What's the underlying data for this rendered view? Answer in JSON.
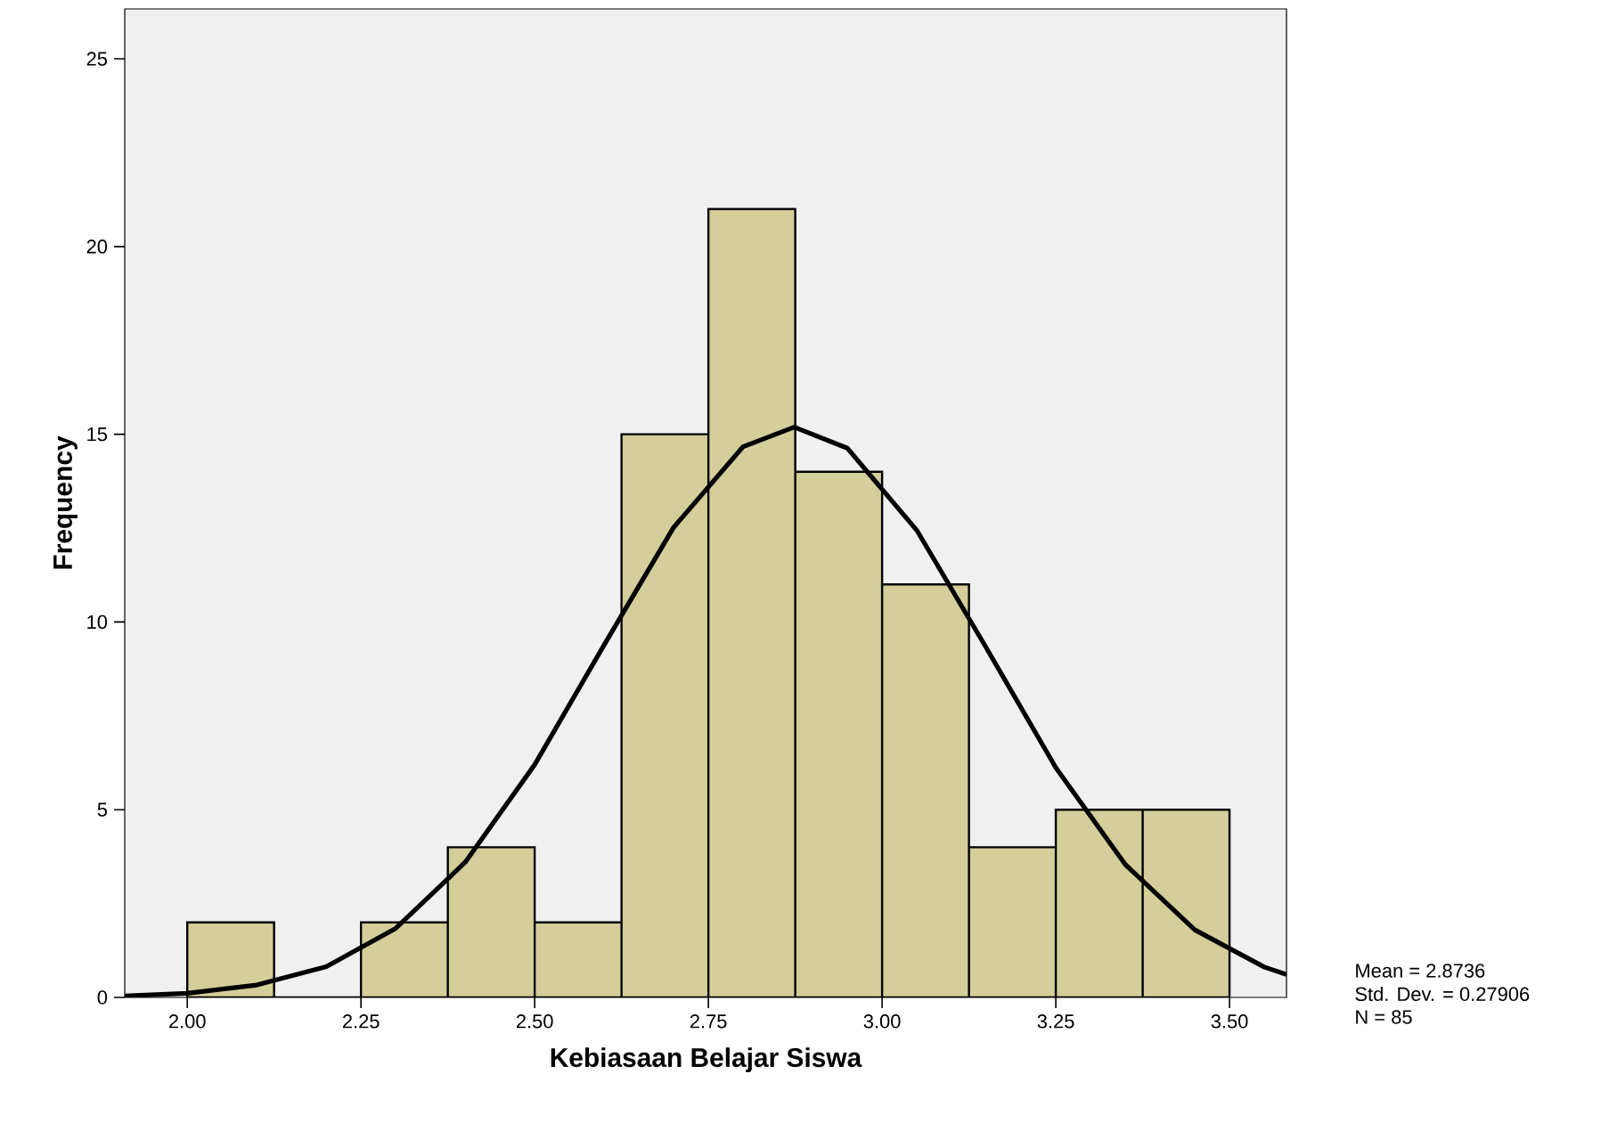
{
  "chart_data": {
    "type": "histogram",
    "xlabel": "Kebiasaan Belajar Siswa",
    "ylabel": "Frequency",
    "series": [
      {
        "color": "#d3ce9a",
        "bins": [
          2.0,
          2.125,
          2.25,
          2.375,
          2.5,
          2.625,
          2.75,
          2.875,
          3.0,
          3.125,
          3.25,
          3.375,
          3.5
        ],
        "values": [
          2,
          0,
          2,
          4,
          2,
          15,
          21,
          14,
          11,
          4,
          5,
          5
        ]
      },
      {
        "type": "line",
        "color": "#000000",
        "x": [
          1.91,
          2.0,
          2.1,
          2.2,
          2.3,
          2.4,
          2.5,
          2.6,
          2.7,
          2.8,
          2.8736,
          2.95,
          3.05,
          3.15,
          3.25,
          3.35,
          3.45,
          3.55,
          3.582
        ],
        "values": [
          0.04,
          0.11,
          0.33,
          0.82,
          1.84,
          3.6,
          6.2,
          9.39,
          12.52,
          14.67,
          15.19,
          14.63,
          12.44,
          9.31,
          6.12,
          3.54,
          1.8,
          0.81,
          0.61
        ]
      }
    ],
    "xlim": [
      1.91,
      3.582
    ],
    "ylim": [
      0,
      26.33
    ],
    "xticks": [
      {
        "value": 2.0,
        "label": "2.00"
      },
      {
        "value": 2.25,
        "label": "2.25"
      },
      {
        "value": 2.5,
        "label": "2.50"
      },
      {
        "value": 2.75,
        "label": "2.75"
      },
      {
        "value": 3.0,
        "label": "3.00"
      },
      {
        "value": 3.25,
        "label": "3.25"
      },
      {
        "value": 3.5,
        "label": "3.50"
      }
    ],
    "yticks": [
      0,
      5,
      10,
      15,
      20,
      25
    ],
    "annotations": [
      "Mean = 2.8736",
      "Std. Dev. = 0.27906",
      "N = 85"
    ]
  }
}
